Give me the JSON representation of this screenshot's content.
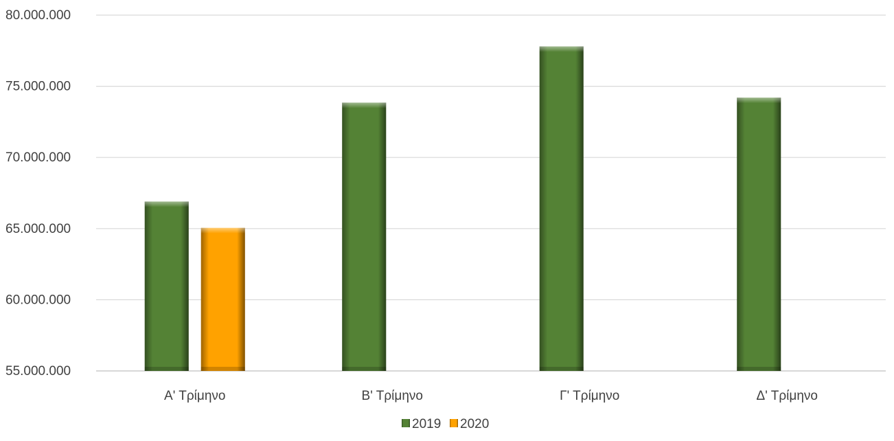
{
  "chart_data": {
    "type": "bar",
    "title": "",
    "xlabel": "",
    "ylabel": "",
    "categories": [
      "Α' Τρίμηνο",
      "Β' Τρίμηνο",
      "Γ' Τρίμηνο",
      "Δ' Τρίμηνο"
    ],
    "series": [
      {
        "name": "2019",
        "color": "#548235",
        "values": [
          66900000,
          73850000,
          77800000,
          74200000
        ]
      },
      {
        "name": "2020",
        "color": "#FFA200",
        "values": [
          65050000,
          null,
          null,
          null
        ]
      }
    ],
    "ylim": [
      55000000,
      80000000
    ],
    "yticks": [
      55000000,
      60000000,
      65000000,
      70000000,
      75000000,
      80000000
    ],
    "ytick_labels": [
      "55.000.000",
      "60.000.000",
      "65.000.000",
      "70.000.000",
      "75.000.000",
      "80.000.000"
    ],
    "grid": true,
    "legend_position": "bottom"
  }
}
